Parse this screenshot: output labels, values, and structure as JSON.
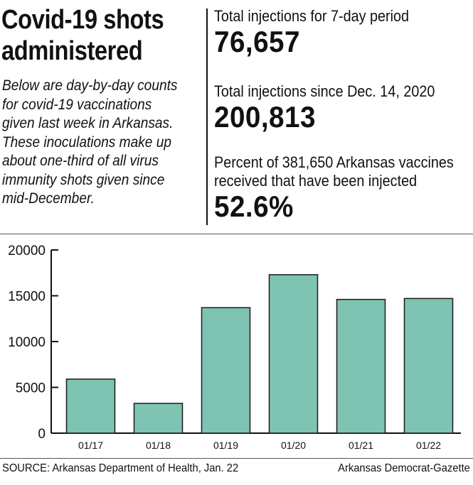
{
  "header": {
    "title_line1": "Covid-19 shots",
    "title_line2": "administered",
    "intro": "Below are day-by-day counts for covid-19 vaccinations given last week in Arkansas. These inoculations make up about one-third of all virus immunity shots given since mid-December."
  },
  "stats": [
    {
      "label": "Total injections for 7-day period",
      "value": "76,657"
    },
    {
      "label": "Total injections since Dec. 14, 2020",
      "value": "200,813"
    },
    {
      "label_line1": "Percent of 381,650 Arkansas vaccines",
      "label_line2": "received that have been injected",
      "value": "52.6%"
    }
  ],
  "chart_data": {
    "type": "bar",
    "categories": [
      "01/17",
      "01/18",
      "01/19",
      "01/20",
      "01/21",
      "01/22"
    ],
    "values": [
      5900,
      3250,
      13700,
      17300,
      14600,
      14700
    ],
    "ylim": [
      0,
      20000
    ],
    "yticks": [
      0,
      5000,
      10000,
      15000,
      20000
    ],
    "ytick_labels": [
      "0",
      "5000",
      "10000",
      "15000",
      "20000"
    ],
    "xlabel": "",
    "ylabel": "",
    "bar_color": "#7fc3b3",
    "grid": false
  },
  "footer": {
    "source": "SOURCE: Arkansas Department of Health, Jan. 22",
    "credit": "Arkansas Democrat-Gazette"
  }
}
